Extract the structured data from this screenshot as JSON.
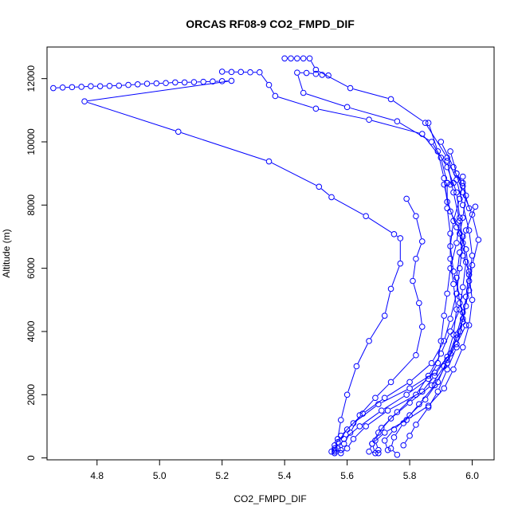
{
  "chart_data": {
    "type": "scatter",
    "title": "ORCAS RF08-9 CO2_FMPD_DIF",
    "xlabel": "CO2_FMPD_DIF",
    "ylabel": "Altitude (m)",
    "xlim": [
      4.64,
      6.07
    ],
    "ylim": [
      -60,
      13000
    ],
    "x_ticks": [
      4.8,
      5.0,
      5.2,
      5.4,
      5.6,
      5.8,
      6.0
    ],
    "x_tick_labels": [
      "4.8",
      "5.0",
      "5.2",
      "5.4",
      "5.6",
      "5.8",
      "6.0"
    ],
    "y_ticks": [
      0,
      2000,
      4000,
      6000,
      8000,
      10000,
      12000
    ],
    "y_tick_labels": [
      "0",
      "2000",
      "4000",
      "6000",
      "8000",
      "10000",
      "12000"
    ],
    "marker": "open-circle",
    "line_style": "points-and-lines",
    "color": "#0000ff",
    "grid": false,
    "series": [
      {
        "points": [
          [
            5.4,
            12640
          ],
          [
            5.42,
            12640
          ],
          [
            5.44,
            12640
          ],
          [
            5.46,
            12640
          ],
          [
            5.48,
            12640
          ],
          [
            5.5,
            12280
          ],
          [
            5.61,
            11700
          ],
          [
            5.74,
            11350
          ],
          [
            5.85,
            10600
          ],
          [
            5.92,
            9500
          ],
          [
            5.95,
            8800
          ],
          [
            5.97,
            8000
          ],
          [
            5.99,
            7200
          ],
          [
            6.0,
            6400
          ],
          [
            5.99,
            5600
          ],
          [
            5.98,
            4800
          ],
          [
            5.96,
            4000
          ],
          [
            5.93,
            3300
          ],
          [
            5.88,
            2700
          ],
          [
            5.8,
            2200
          ],
          [
            5.7,
            1700
          ],
          [
            5.62,
            1100
          ],
          [
            5.58,
            700
          ],
          [
            5.56,
            400
          ],
          [
            5.55,
            200
          ],
          [
            5.56,
            150
          ]
        ]
      },
      {
        "points": [
          [
            5.54,
            12100
          ],
          [
            5.52,
            12120
          ],
          [
            5.5,
            12150
          ],
          [
            5.47,
            12180
          ],
          [
            5.44,
            12190
          ],
          [
            5.46,
            11550
          ],
          [
            5.6,
            11100
          ],
          [
            5.76,
            10650
          ],
          [
            5.87,
            10000
          ],
          [
            5.92,
            9200
          ],
          [
            5.95,
            8400
          ],
          [
            5.96,
            7600
          ],
          [
            5.97,
            6800
          ],
          [
            5.96,
            6000
          ],
          [
            5.95,
            5200
          ],
          [
            5.93,
            4400
          ],
          [
            5.91,
            3700
          ],
          [
            5.87,
            3000
          ],
          [
            5.8,
            2400
          ],
          [
            5.72,
            1900
          ],
          [
            5.65,
            1400
          ],
          [
            5.6,
            900
          ],
          [
            5.57,
            500
          ],
          [
            5.56,
            250
          ]
        ]
      },
      {
        "points": [
          [
            4.66,
            11700
          ],
          [
            4.69,
            11720
          ],
          [
            4.72,
            11730
          ],
          [
            4.75,
            11740
          ],
          [
            4.78,
            11760
          ],
          [
            4.81,
            11760
          ],
          [
            4.84,
            11770
          ],
          [
            4.87,
            11780
          ],
          [
            4.9,
            11800
          ],
          [
            4.93,
            11820
          ],
          [
            4.96,
            11840
          ],
          [
            4.99,
            11850
          ],
          [
            5.02,
            11860
          ],
          [
            5.05,
            11880
          ],
          [
            5.08,
            11880
          ],
          [
            5.11,
            11890
          ],
          [
            5.14,
            11900
          ],
          [
            5.17,
            11910
          ],
          [
            5.2,
            11920
          ],
          [
            5.23,
            11930
          ],
          [
            4.76,
            11280
          ],
          [
            5.06,
            10320
          ],
          [
            5.35,
            9380
          ],
          [
            5.51,
            8580
          ],
          [
            5.55,
            8250
          ],
          [
            5.66,
            7650
          ],
          [
            5.75,
            7080
          ],
          [
            5.77,
            6950
          ],
          [
            5.77,
            6150
          ],
          [
            5.74,
            5350
          ],
          [
            5.72,
            4500
          ],
          [
            5.67,
            3700
          ],
          [
            5.63,
            2900
          ],
          [
            5.6,
            2000
          ],
          [
            5.58,
            1200
          ],
          [
            5.57,
            600
          ],
          [
            5.56,
            300
          ]
        ]
      },
      {
        "points": [
          [
            5.2,
            12220
          ],
          [
            5.23,
            12210
          ],
          [
            5.26,
            12210
          ],
          [
            5.29,
            12200
          ],
          [
            5.32,
            12200
          ],
          [
            5.35,
            11800
          ],
          [
            5.37,
            11450
          ],
          [
            5.5,
            11050
          ],
          [
            5.67,
            10700
          ],
          [
            5.84,
            10250
          ],
          [
            5.9,
            9500
          ],
          [
            5.92,
            8700
          ],
          [
            5.92,
            7900
          ],
          [
            5.93,
            7100
          ],
          [
            5.93,
            6300
          ],
          [
            5.94,
            5500
          ],
          [
            5.95,
            4700
          ],
          [
            5.94,
            3900
          ],
          [
            5.92,
            3200
          ],
          [
            5.88,
            2600
          ],
          [
            5.84,
            2100
          ],
          [
            5.73,
            1500
          ],
          [
            5.66,
            1000
          ],
          [
            5.62,
            600
          ],
          [
            5.6,
            300
          ],
          [
            5.58,
            150
          ]
        ]
      },
      {
        "points": [
          [
            5.79,
            8200
          ],
          [
            5.82,
            7650
          ],
          [
            5.84,
            6850
          ],
          [
            5.82,
            6300
          ],
          [
            5.81,
            5600
          ],
          [
            5.83,
            4900
          ],
          [
            5.84,
            4150
          ],
          [
            5.82,
            3250
          ],
          [
            5.74,
            2400
          ],
          [
            5.69,
            1900
          ],
          [
            5.64,
            1350
          ],
          [
            5.61,
            800
          ],
          [
            5.59,
            450
          ],
          [
            5.58,
            250
          ]
        ]
      },
      {
        "points": [
          [
            5.86,
            10600
          ],
          [
            5.89,
            9700
          ],
          [
            5.91,
            8850
          ],
          [
            5.92,
            8100
          ],
          [
            5.95,
            7300
          ],
          [
            5.98,
            6600
          ],
          [
            5.99,
            5800
          ],
          [
            6.0,
            5000
          ],
          [
            5.99,
            4200
          ],
          [
            5.97,
            3500
          ],
          [
            5.94,
            2800
          ],
          [
            5.91,
            2200
          ],
          [
            5.86,
            1650
          ],
          [
            5.79,
            1200
          ],
          [
            5.72,
            800
          ],
          [
            5.68,
            450
          ],
          [
            5.67,
            200
          ],
          [
            5.7,
            150
          ]
        ]
      },
      {
        "points": [
          [
            5.9,
            10000
          ],
          [
            5.94,
            9200
          ],
          [
            5.97,
            8400
          ],
          [
            6.0,
            7700
          ],
          [
            6.02,
            6900
          ],
          [
            6.0,
            6100
          ],
          [
            5.99,
            5300
          ],
          [
            5.97,
            4600
          ],
          [
            5.95,
            3900
          ],
          [
            5.92,
            3100
          ],
          [
            5.89,
            2400
          ],
          [
            5.85,
            1850
          ],
          [
            5.8,
            1350
          ],
          [
            5.75,
            900
          ],
          [
            5.72,
            550
          ],
          [
            5.73,
            250
          ]
        ]
      },
      {
        "points": [
          [
            5.93,
            9700
          ],
          [
            5.95,
            9000
          ],
          [
            5.97,
            8600
          ],
          [
            5.99,
            7900
          ],
          [
            6.01,
            7950
          ],
          [
            5.98,
            7200
          ],
          [
            5.96,
            6500
          ],
          [
            5.95,
            5700
          ],
          [
            5.96,
            4900
          ],
          [
            5.98,
            4200
          ],
          [
            5.95,
            3600
          ],
          [
            5.91,
            2900
          ],
          [
            5.87,
            2300
          ],
          [
            5.8,
            1750
          ],
          [
            5.74,
            1250
          ],
          [
            5.7,
            800
          ],
          [
            5.68,
            450
          ],
          [
            5.69,
            150
          ]
        ]
      },
      {
        "points": [
          [
            5.95,
            9000
          ],
          [
            5.97,
            8700
          ],
          [
            5.96,
            8200
          ],
          [
            5.94,
            7500
          ],
          [
            5.93,
            6700
          ],
          [
            5.94,
            5900
          ],
          [
            5.96,
            5100
          ],
          [
            5.97,
            4400
          ],
          [
            5.95,
            3800
          ],
          [
            5.92,
            3000
          ],
          [
            5.88,
            2300
          ],
          [
            5.83,
            1700
          ],
          [
            5.78,
            1100
          ],
          [
            5.75,
            650
          ],
          [
            5.74,
            300
          ],
          [
            5.76,
            100
          ]
        ]
      },
      {
        "points": [
          [
            5.94,
            8700
          ],
          [
            5.93,
            8650
          ],
          [
            5.92,
            8700
          ],
          [
            5.91,
            8650
          ],
          [
            5.93,
            7800
          ],
          [
            5.97,
            7000
          ],
          [
            5.98,
            6200
          ],
          [
            5.97,
            5400
          ],
          [
            5.96,
            4700
          ],
          [
            5.93,
            4000
          ],
          [
            5.9,
            3300
          ],
          [
            5.86,
            2600
          ],
          [
            5.82,
            2000
          ],
          [
            5.76,
            1450
          ],
          [
            5.71,
            950
          ],
          [
            5.69,
            550
          ],
          [
            5.7,
            250
          ]
        ]
      },
      {
        "points": [
          [
            5.92,
            9400
          ],
          [
            5.94,
            8400
          ],
          [
            5.96,
            7500
          ],
          [
            5.95,
            6800
          ],
          [
            5.93,
            6000
          ],
          [
            5.92,
            5200
          ],
          [
            5.91,
            4500
          ],
          [
            5.9,
            3700
          ],
          [
            5.89,
            3000
          ],
          [
            5.86,
            2500
          ],
          [
            5.79,
            2000
          ],
          [
            5.71,
            1500
          ],
          [
            5.64,
            1000
          ],
          [
            5.59,
            600
          ],
          [
            5.57,
            300
          ],
          [
            5.56,
            200
          ]
        ]
      },
      {
        "points": [
          [
            5.97,
            8900
          ],
          [
            5.98,
            8300
          ],
          [
            5.97,
            7600
          ],
          [
            5.96,
            7100
          ],
          [
            5.97,
            6400
          ],
          [
            5.99,
            5900
          ],
          [
            5.98,
            5100
          ],
          [
            5.97,
            4300
          ],
          [
            5.95,
            3500
          ],
          [
            5.92,
            2800
          ],
          [
            5.89,
            2100
          ],
          [
            5.86,
            1600
          ],
          [
            5.82,
            1050
          ],
          [
            5.8,
            700
          ],
          [
            5.78,
            400
          ]
        ]
      }
    ]
  }
}
